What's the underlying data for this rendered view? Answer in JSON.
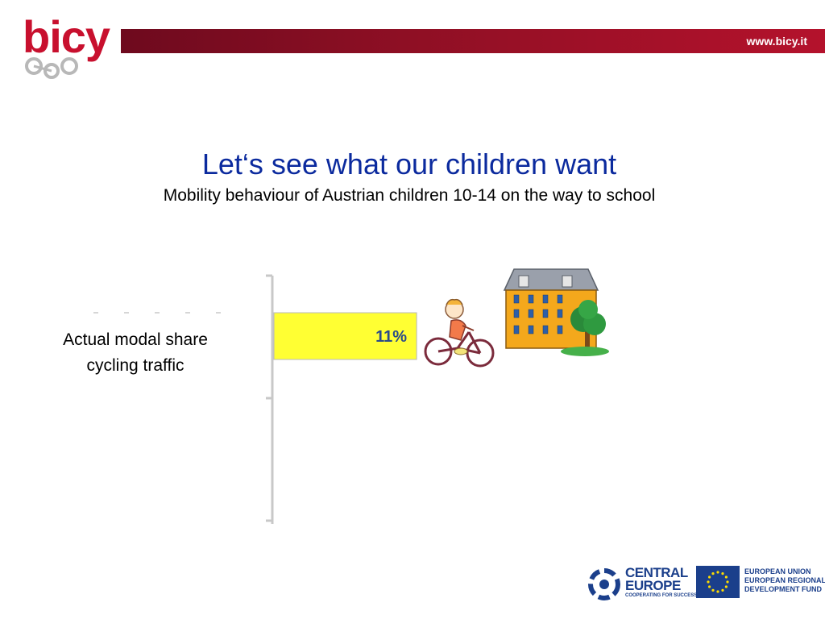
{
  "header": {
    "logo_text": "bicy",
    "url": "www.bicy.it",
    "accent_color": "#b4122c"
  },
  "slide": {
    "title": "Let‘s see what our children want",
    "subtitle": "Mobility behaviour of Austrian children 10-14 on the way to school"
  },
  "chart_data": {
    "type": "bar",
    "orientation": "horizontal",
    "categories": [
      "Actual modal share cycling traffic"
    ],
    "category_lines": [
      "Actual modal share",
      "cycling traffic"
    ],
    "values": [
      11
    ],
    "data_labels": [
      "11%"
    ],
    "xlim": [
      0,
      100
    ],
    "bar_color": "#ffff33",
    "grid": false
  },
  "footer": {
    "central_europe_line1": "CENTRAL",
    "central_europe_line2": "EUROPE",
    "central_europe_tagline": "COOPERATING FOR SUCCESS.",
    "eu_line1": "EUROPEAN UNION",
    "eu_line2": "EUROPEAN REGIONAL",
    "eu_line3": "DEVELOPMENT FUND"
  },
  "icons": {
    "child_cyclist": "child-on-bicycle-icon",
    "school_building": "school-building-icon",
    "tree": "tree-icon"
  }
}
